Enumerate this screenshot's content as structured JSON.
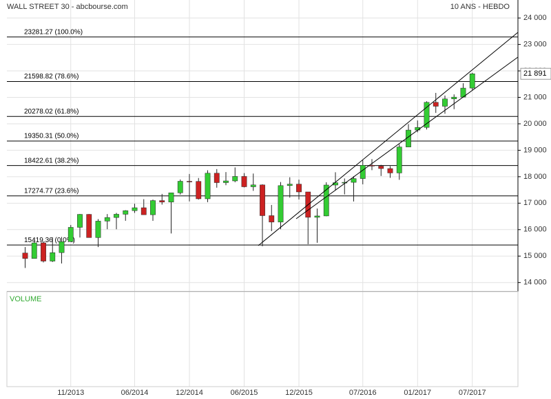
{
  "chart_data": {
    "type": "candlestick",
    "title": "WALL STREET 30 - abcbourse.com",
    "subtitle": "10 ANS - HEBDO",
    "volume_label": "VOLUME",
    "x": [
      "2013-06",
      "2013-07",
      "2013-08",
      "2013-09",
      "2013-10",
      "2013-11",
      "2013-12",
      "2014-01",
      "2014-02",
      "2014-03",
      "2014-04",
      "2014-05",
      "2014-06",
      "2014-07",
      "2014-08",
      "2014-09",
      "2014-10",
      "2014-11",
      "2014-12",
      "2015-01",
      "2015-02",
      "2015-03",
      "2015-04",
      "2015-05",
      "2015-06",
      "2015-07",
      "2015-08",
      "2015-09",
      "2015-10",
      "2015-11",
      "2015-12",
      "2016-01",
      "2016-02",
      "2016-03",
      "2016-04",
      "2016-05",
      "2016-06",
      "2016-07",
      "2016-08",
      "2016-09",
      "2016-10",
      "2016-11",
      "2016-12",
      "2017-01",
      "2017-02",
      "2017-03",
      "2017-04",
      "2017-05",
      "2017-06",
      "2017-07"
    ],
    "open": [
      15116,
      14910,
      15500,
      14810,
      15130,
      15546,
      16086,
      16577,
      15699,
      16322,
      16458,
      16581,
      16717,
      16827,
      16563,
      17098,
      17043,
      17391,
      17828,
      17823,
      17165,
      18133,
      17776,
      17841,
      18011,
      17620,
      17690,
      16528,
      16285,
      17664,
      17720,
      17425,
      16466,
      16517,
      17685,
      17774,
      17787,
      17930,
      18432,
      18401,
      18308,
      18142,
      19124,
      19763,
      19864,
      20812,
      20663,
      20941,
      21009,
      21350
    ],
    "high": [
      15340,
      15658,
      15542,
      15709,
      15721,
      16175,
      16588,
      16589,
      16398,
      16588,
      16632,
      16735,
      16978,
      17151,
      17136,
      17350,
      17395,
      17895,
      18103,
      17951,
      18244,
      18288,
      18175,
      18351,
      18137,
      18120,
      17712,
      16933,
      17799,
      17978,
      17889,
      17425,
      16796,
      17790,
      18168,
      17934,
      18016,
      18622,
      18668,
      18450,
      18399,
      19225,
      19987,
      20126,
      20851,
      21169,
      21070,
      21112,
      21535,
      21929
    ],
    "low": [
      14551,
      14910,
      14760,
      14777,
      14720,
      15546,
      15703,
      15698,
      15341,
      16015,
      16015,
      16334,
      16632,
      16563,
      16334,
      16945,
      15855,
      17325,
      17068,
      17136,
      17037,
      17585,
      17677,
      17791,
      17597,
      17466,
      15370,
      15942,
      16013,
      17210,
      17139,
      15450,
      15503,
      16506,
      17484,
      17331,
      17063,
      17713,
      18247,
      18028,
      17959,
      17884,
      19121,
      19678,
      19784,
      20412,
      20380,
      20553,
      20994,
      21279
    ],
    "close": [
      14910,
      15500,
      14810,
      15130,
      15546,
      16086,
      16577,
      15699,
      16322,
      16458,
      16581,
      16717,
      16827,
      16563,
      17098,
      17043,
      17391,
      17828,
      17823,
      17165,
      18133,
      17776,
      17841,
      18011,
      17620,
      17690,
      16528,
      16285,
      17664,
      17720,
      17425,
      16466,
      16517,
      17685,
      17774,
      17787,
      17930,
      18432,
      18401,
      18308,
      18142,
      19124,
      19763,
      19864,
      20812,
      20663,
      20941,
      21009,
      21350,
      21891
    ],
    "up_color": "#33cc33",
    "down_color": "#cc2222",
    "xlim": [
      "2013-04",
      "2017-12"
    ],
    "xticks": [
      {
        "value": "2013-11",
        "label": "11/2013"
      },
      {
        "value": "2014-06",
        "label": "06/2014"
      },
      {
        "value": "2014-12",
        "label": "12/2014"
      },
      {
        "value": "2015-06",
        "label": "06/2015"
      },
      {
        "value": "2015-12",
        "label": "12/2015"
      },
      {
        "value": "2016-07",
        "label": "07/2016"
      },
      {
        "value": "2017-01",
        "label": "01/2017"
      },
      {
        "value": "2017-07",
        "label": "07/2017"
      }
    ],
    "ylim": [
      13680,
      24680
    ],
    "yticks": [
      {
        "value": 14000,
        "label": "14 000"
      },
      {
        "value": 15000,
        "label": "15 000"
      },
      {
        "value": 16000,
        "label": "16 000"
      },
      {
        "value": 17000,
        "label": "17 000"
      },
      {
        "value": 18000,
        "label": "18 000"
      },
      {
        "value": 19000,
        "label": "19 000"
      },
      {
        "value": 20000,
        "label": "20 000"
      },
      {
        "value": 21000,
        "label": "21 000"
      },
      {
        "value": 22000,
        "label": "22 000"
      },
      {
        "value": 23000,
        "label": "23 000"
      },
      {
        "value": 24000,
        "label": "24 000"
      }
    ],
    "grid": true,
    "fibonacci": [
      {
        "value": 23281.27,
        "label": "23281.27  (100.0%)"
      },
      {
        "value": 21598.82,
        "label": "21598.82  (78.6%)"
      },
      {
        "value": 20278.02,
        "label": "20278.02  (61.8%)"
      },
      {
        "value": 19350.31,
        "label": "19350.31  (50.0%)"
      },
      {
        "value": 18422.61,
        "label": "18422.61  (38.2%)"
      },
      {
        "value": 17274.77,
        "label": "17274.77  (23.6%)"
      },
      {
        "value": 15419.36,
        "label": "15419.36  (0.0%)"
      }
    ],
    "last_price": {
      "value": 21891,
      "label": "21 891"
    }
  }
}
